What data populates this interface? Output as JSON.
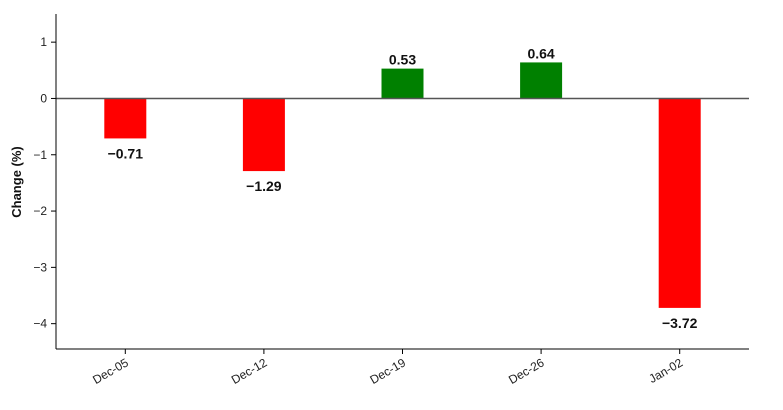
{
  "chart_data": {
    "type": "bar",
    "title": "",
    "xlabel": "",
    "ylabel": "Change (%)",
    "categories": [
      "Dec-05",
      "Dec-12",
      "Dec-19",
      "Dec-26",
      "Jan-02"
    ],
    "values": [
      -0.71,
      -1.29,
      0.53,
      0.64,
      -3.72
    ],
    "value_labels": [
      "−0.71",
      "−1.29",
      "0.53",
      "0.64",
      "−3.72"
    ],
    "yticks": [
      1,
      0,
      -1,
      -2,
      -3,
      -4
    ],
    "ytick_labels": [
      "1",
      "0",
      "−1",
      "−2",
      "−3",
      "−4"
    ],
    "ylim": [
      -4.45,
      1.5
    ],
    "grid": false,
    "colors": {
      "positive": "#008000",
      "negative": "#ff0000",
      "zero_line": "#555555",
      "axis": "#000000"
    }
  }
}
